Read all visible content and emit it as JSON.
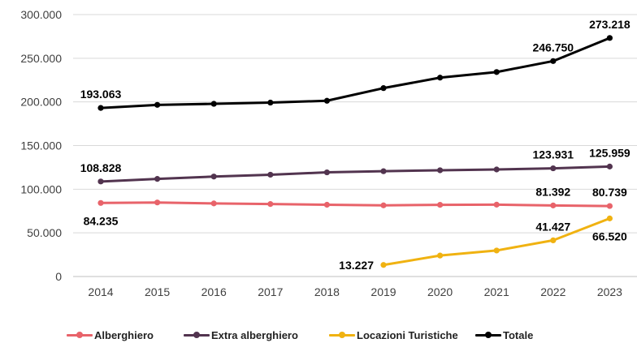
{
  "chart_data": {
    "type": "line",
    "title": "",
    "xlabel": "",
    "ylabel": "",
    "ylim": [
      0,
      300000
    ],
    "yticks": [
      "0",
      "50.000",
      "100.000",
      "150.000",
      "200.000",
      "250.000",
      "300.000"
    ],
    "categories": [
      "2014",
      "2015",
      "2016",
      "2017",
      "2018",
      "2019",
      "2020",
      "2021",
      "2022",
      "2023"
    ],
    "grid": "horizontal",
    "legend_position": "bottom",
    "series": [
      {
        "name": "Alberghiero",
        "color": "#e8636a",
        "values": [
          84235,
          84800,
          83700,
          83000,
          82200,
          81500,
          82100,
          82300,
          81392,
          80739
        ],
        "labels": [
          {
            "index": 0,
            "text": "84.235",
            "pos": "below"
          },
          {
            "index": 8,
            "text": "81.392",
            "pos": "above"
          },
          {
            "index": 9,
            "text": "80.739",
            "pos": "above"
          }
        ]
      },
      {
        "name": "Extra alberghiero",
        "color": "#52344f",
        "values": [
          108828,
          111800,
          114500,
          116600,
          119300,
          120600,
          121700,
          122600,
          123931,
          125959
        ],
        "labels": [
          {
            "index": 0,
            "text": "108.828",
            "pos": "above"
          },
          {
            "index": 8,
            "text": "123.931",
            "pos": "above"
          },
          {
            "index": 9,
            "text": "125.959",
            "pos": "above"
          }
        ]
      },
      {
        "name": "Locazioni Turistiche",
        "color": "#f0b211",
        "values": [
          null,
          null,
          null,
          null,
          null,
          13227,
          24000,
          29800,
          41427,
          66520
        ],
        "labels": [
          {
            "index": 5,
            "text": "13.227",
            "pos": "left"
          },
          {
            "index": 8,
            "text": "41.427",
            "pos": "above"
          },
          {
            "index": 9,
            "text": "66.520",
            "pos": "below"
          }
        ]
      },
      {
        "name": "Totale",
        "color": "#000000",
        "values": [
          193063,
          196600,
          197800,
          199200,
          201300,
          215800,
          227800,
          234200,
          246750,
          273218
        ],
        "labels": [
          {
            "index": 0,
            "text": "193.063",
            "pos": "above"
          },
          {
            "index": 8,
            "text": "246.750",
            "pos": "above"
          },
          {
            "index": 9,
            "text": "273.218",
            "pos": "above"
          }
        ]
      }
    ]
  }
}
